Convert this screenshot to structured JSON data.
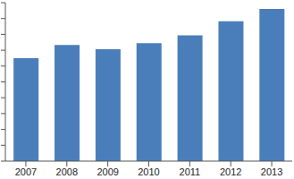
{
  "chart_data": {
    "type": "bar",
    "categories": [
      "2007",
      "2008",
      "2009",
      "2010",
      "2011",
      "2012",
      "2013"
    ],
    "values": [
      6.5,
      7.33,
      7.06,
      7.44,
      7.94,
      8.83,
      9.61
    ],
    "color": "#4a7ebb",
    "ylim": [
      0,
      10
    ],
    "yticks": [
      0,
      1,
      2,
      3,
      4,
      5,
      6,
      7,
      8,
      9,
      10
    ],
    "grid": false,
    "tick_labels": "x"
  }
}
